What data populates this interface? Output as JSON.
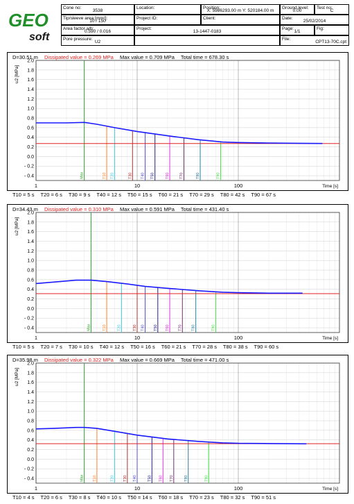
{
  "header": {
    "logo": {
      "line1": "GEO",
      "line2": "soft"
    },
    "cone_no": {
      "label": "Cone no:",
      "value": "3538"
    },
    "tip_sleeve": {
      "label": "Tip/sleeve area [mm²]:",
      "value": "10 / 150"
    },
    "area_factor": {
      "label": "Area factor a/b:",
      "value": "0.590 / 0.016"
    },
    "pore_pressure": {
      "label": "Pore pressure:",
      "value": "U2"
    },
    "location": {
      "label": "Location:",
      "value": ""
    },
    "project_id": {
      "label": "Project ID:",
      "value": ""
    },
    "project": {
      "label": "Project:",
      "value": "13-1447-0183"
    },
    "position": {
      "label": "Position:",
      "value": "X: 5986293.00 m   Y: 520184.00 m"
    },
    "client": {
      "label": "Client:",
      "value": ""
    },
    "ground_level": {
      "label": "Ground level:",
      "value": "0.00"
    },
    "test_no": {
      "label": "Test no:",
      "value": "C"
    },
    "date": {
      "label": "Date:",
      "value": "25/02/2014"
    },
    "page": {
      "label": "Page:",
      "value": "1/1"
    },
    "fig": {
      "label": "Fig:",
      "value": ""
    },
    "file": {
      "label": "File:",
      "value": "CPT13-70C.cpt"
    }
  },
  "panels": [
    {
      "depth": "D=30.51 m",
      "dissipated": "Dissipated value = 0.269 MPa",
      "max": "Max value = 0.709 MPa",
      "total": "Total time = 678.30 s",
      "footer": [
        "T10 = 5 s",
        "T20 = 6 s",
        "T30 = 9 s",
        "T40 = 12 s",
        "T50 = 15 s",
        "T60 = 21 s",
        "T70 = 29 s",
        "T80 = 42 s",
        "T90 = 67 s"
      ]
    },
    {
      "depth": "D=34.43 m",
      "dissipated": "Dissipated value = 0.310 MPa",
      "max": "Max value = 0.591 MPa",
      "total": "Total time = 431.40 s",
      "footer": [
        "T10 = 5 s",
        "T20 = 7 s",
        "T30 = 10 s",
        "T40 = 12 s",
        "T50 = 16 s",
        "T60 = 21 s",
        "T70 = 28 s",
        "T80 = 38 s",
        "T90 = 60 s"
      ]
    },
    {
      "depth": "D=35.98 m",
      "dissipated": "Dissipated value = 0.322 MPa",
      "max": "Max value = 0.669 MPa",
      "total": "Total time = 471.00 s",
      "footer": [
        "T10 = 4 s",
        "T20 = 6 s",
        "T30 = 8 s",
        "T40 = 10 s",
        "T50 = 14 s",
        "T60 = 18 s",
        "T70 = 23 s",
        "T80 = 32 s",
        "T90 = 51 s"
      ]
    }
  ],
  "chart_data": [
    {
      "type": "line",
      "xscale": "log",
      "xlim": [
        1,
        1000
      ],
      "ylim": [
        -0.5,
        2.0
      ],
      "xlabel": "Time [s]",
      "ylabel": "u2 [MPa]",
      "xticks": [
        "1",
        "10",
        "100"
      ],
      "yticks": [
        "- 0.4",
        "- 0.2",
        "0.0",
        "0.2",
        "0.4",
        "0.6",
        "0.8",
        "1.0",
        "1.2",
        "1.4",
        "1.6",
        "1.8",
        "2.0"
      ],
      "series": [
        {
          "x": [
            1,
            2,
            3,
            4,
            6,
            10,
            20,
            40,
            70,
            100,
            200,
            400,
            678.3
          ],
          "y": [
            0.7,
            0.7,
            0.71,
            0.67,
            0.6,
            0.52,
            0.43,
            0.35,
            0.3,
            0.29,
            0.28,
            0.275,
            0.27
          ]
        }
      ],
      "dissipated": 0.269,
      "markers": [
        {
          "label": "Max",
          "t": 3,
          "color": "#2e9e2e"
        },
        {
          "label": "T10",
          "t": 5,
          "color": "#ff7f27"
        },
        {
          "label": "T20",
          "t": 6,
          "color": "#40c8e0"
        },
        {
          "label": "T30",
          "t": 9,
          "color": "#b03030"
        },
        {
          "label": "T40",
          "t": 12,
          "color": "#5050d0"
        },
        {
          "label": "T50",
          "t": 15,
          "color": "#202080"
        },
        {
          "label": "T60",
          "t": 21,
          "color": "#e030e0"
        },
        {
          "label": "T70",
          "t": 29,
          "color": "#703070"
        },
        {
          "label": "T80",
          "t": 42,
          "color": "#2a7f9e"
        },
        {
          "label": "T90",
          "t": 67,
          "color": "#44dd44"
        }
      ],
      "colors": {
        "curve": "#1a1aff",
        "dissipated": "#e02020"
      }
    },
    {
      "type": "line",
      "xscale": "log",
      "xlim": [
        1,
        1000
      ],
      "ylim": [
        -0.5,
        2.0
      ],
      "xlabel": "Time [s]",
      "ylabel": "u2 [MPa]",
      "xticks": [
        "1",
        "10",
        "100"
      ],
      "yticks": [
        "- 0.4",
        "- 0.2",
        "0.0",
        "0.2",
        "0.4",
        "0.6",
        "0.8",
        "1.0",
        "1.2",
        "1.4",
        "1.6",
        "1.8",
        "2.0"
      ],
      "series": [
        {
          "x": [
            1,
            1.5,
            2.5,
            3.5,
            5,
            8,
            12,
            20,
            40,
            70,
            100,
            200,
            431.4
          ],
          "y": [
            0.52,
            0.55,
            0.59,
            0.59,
            0.56,
            0.51,
            0.46,
            0.42,
            0.37,
            0.34,
            0.33,
            0.32,
            0.32
          ]
        }
      ],
      "dissipated": 0.31,
      "markers": [
        {
          "label": "Max",
          "t": 3.5,
          "color": "#2e9e2e"
        },
        {
          "label": "T10",
          "t": 5,
          "color": "#ff7f27"
        },
        {
          "label": "T20",
          "t": 7,
          "color": "#40c8e0"
        },
        {
          "label": "T30",
          "t": 10,
          "color": "#b03030"
        },
        {
          "label": "T40",
          "t": 12,
          "color": "#5050d0"
        },
        {
          "label": "T50",
          "t": 16,
          "color": "#202080"
        },
        {
          "label": "T60",
          "t": 21,
          "color": "#e030e0"
        },
        {
          "label": "T70",
          "t": 28,
          "color": "#703070"
        },
        {
          "label": "T80",
          "t": 38,
          "color": "#2a7f9e"
        },
        {
          "label": "T90",
          "t": 60,
          "color": "#44dd44"
        }
      ],
      "colors": {
        "curve": "#1a1aff",
        "dissipated": "#e02020"
      }
    },
    {
      "type": "line",
      "xscale": "log",
      "xlim": [
        1,
        1000
      ],
      "ylim": [
        -0.5,
        2.0
      ],
      "xlabel": "Time [s]",
      "ylabel": "u2 [MPa]",
      "xticks": [
        "1",
        "10",
        "100"
      ],
      "yticks": [
        "- 0.4",
        "- 0.2",
        "0.0",
        "0.2",
        "0.4",
        "0.6",
        "0.8",
        "1.0",
        "1.2",
        "1.4",
        "1.6",
        "1.8",
        "2.0"
      ],
      "series": [
        {
          "x": [
            1,
            1.5,
            2.5,
            3,
            4,
            6,
            10,
            20,
            40,
            70,
            100,
            200,
            471
          ],
          "y": [
            0.63,
            0.64,
            0.66,
            0.66,
            0.64,
            0.58,
            0.5,
            0.42,
            0.37,
            0.34,
            0.33,
            0.325,
            0.32
          ]
        }
      ],
      "dissipated": 0.322,
      "markers": [
        {
          "label": "Max",
          "t": 3,
          "color": "#2e9e2e"
        },
        {
          "label": "T10",
          "t": 4,
          "color": "#ff7f27"
        },
        {
          "label": "T20",
          "t": 6,
          "color": "#40c8e0"
        },
        {
          "label": "T30",
          "t": 8,
          "color": "#b03030"
        },
        {
          "label": "T40",
          "t": 10,
          "color": "#5050d0"
        },
        {
          "label": "T50",
          "t": 14,
          "color": "#202080"
        },
        {
          "label": "T60",
          "t": 18,
          "color": "#e030e0"
        },
        {
          "label": "T70",
          "t": 23,
          "color": "#703070"
        },
        {
          "label": "T80",
          "t": 32,
          "color": "#2a7f9e"
        },
        {
          "label": "T90",
          "t": 51,
          "color": "#44dd44"
        }
      ],
      "colors": {
        "curve": "#1a1aff",
        "dissipated": "#e02020"
      }
    }
  ]
}
